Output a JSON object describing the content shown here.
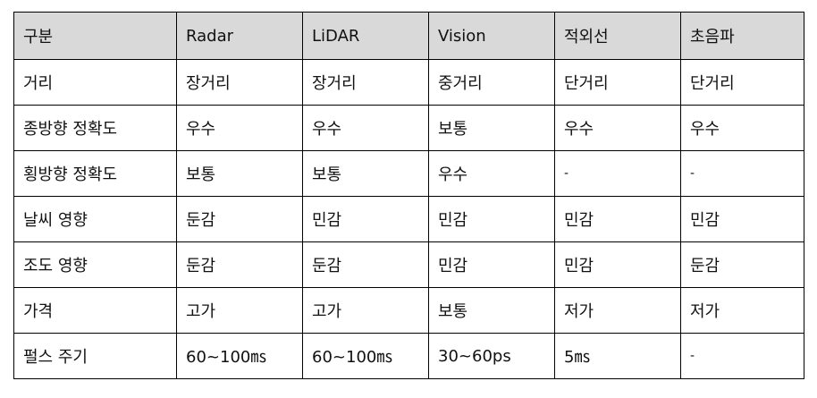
{
  "header": [
    "구분",
    "Radar",
    "LiDAR",
    "Vision",
    "적외선",
    "초음파"
  ],
  "header_bg": "#d9d9d9",
  "rows": [
    [
      "거리",
      "장거리",
      "장거리",
      "중거리",
      "단거리",
      "단거리"
    ],
    [
      "종방향 정확도",
      "우수",
      "우수",
      "보통",
      "우수",
      "우수"
    ],
    [
      "횡방향 정확도",
      "보통",
      "보통",
      "우수",
      "-",
      "-"
    ],
    [
      "날씨 영향",
      "둔감",
      "민감",
      "민감",
      "민감",
      "민감"
    ],
    [
      "조도 영향",
      "둔감",
      "둔감",
      "민감",
      "민감",
      "둔감"
    ],
    [
      "가격",
      "고가",
      "고가",
      "보통",
      "저가",
      "저가"
    ],
    [
      "펄스 주기",
      "60~100㎳",
      "60~100㎳",
      "30~60ps",
      "5㎳",
      "-"
    ]
  ]
}
